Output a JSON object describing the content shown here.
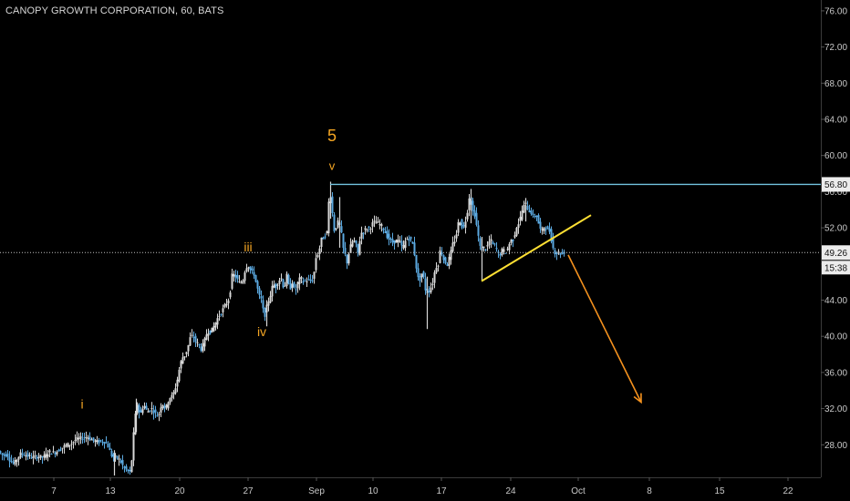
{
  "chart_data": {
    "type": "candlestick",
    "title": "CANOPY GROWTH CORPORATION, 60, BATS",
    "x_ticks": [
      "7",
      "13",
      "20",
      "27",
      "Sep",
      "10",
      "17",
      "24",
      "Oct",
      "8",
      "15",
      "22"
    ],
    "y_ticks": [
      "76.00",
      "72.00",
      "68.00",
      "64.00",
      "60.00",
      "56.00",
      "52.00",
      "48.00",
      "44.00",
      "40.00",
      "36.00",
      "32.00",
      "28.00"
    ],
    "ylim": [
      24.4,
      77.2
    ],
    "resistance_level": 56.8,
    "resistance_label": "56.80",
    "last_price": 49.26,
    "last_price_label": "49.26",
    "countdown_label": "15:38",
    "wave_labels": [
      {
        "text": "i",
        "price": 32.0
      },
      {
        "text": "iii",
        "price": 49.4
      },
      {
        "text": "iv",
        "price": 40.0
      },
      {
        "text": "5",
        "price": 61.6
      },
      {
        "text": "v",
        "price": 58.4
      }
    ],
    "price_path": [
      [
        0,
        27.2
      ],
      [
        4,
        26.8
      ],
      [
        8,
        27.0
      ],
      [
        12,
        26.2
      ],
      [
        16,
        25.9
      ],
      [
        20,
        26.6
      ],
      [
        24,
        27.1
      ],
      [
        30,
        26.8
      ],
      [
        36,
        26.6
      ],
      [
        42,
        26.7
      ],
      [
        48,
        26.6
      ],
      [
        54,
        27.2
      ],
      [
        60,
        27.1
      ],
      [
        66,
        27.5
      ],
      [
        72,
        27.9
      ],
      [
        78,
        28.1
      ],
      [
        84,
        28.6
      ],
      [
        90,
        28.7
      ],
      [
        96,
        28.9
      ],
      [
        102,
        28.5
      ],
      [
        108,
        28.3
      ],
      [
        114,
        28.4
      ],
      [
        118,
        28.1
      ],
      [
        121,
        27.3
      ],
      [
        124,
        26.6
      ],
      [
        128,
        26.6
      ],
      [
        132,
        26.3
      ],
      [
        136,
        25.5
      ],
      [
        140,
        25.1
      ],
      [
        144,
        24.9
      ],
      [
        148,
        30.6
      ],
      [
        151,
        32.6
      ],
      [
        154,
        31.2
      ],
      [
        158,
        32.5
      ],
      [
        162,
        31.6
      ],
      [
        166,
        32.1
      ],
      [
        170,
        31.6
      ],
      [
        174,
        31.1
      ],
      [
        178,
        32.7
      ],
      [
        182,
        31.9
      ],
      [
        186,
        33.2
      ],
      [
        190,
        33.4
      ],
      [
        194,
        34.7
      ],
      [
        197,
        36.3
      ],
      [
        200,
        37.6
      ],
      [
        203,
        37.9
      ],
      [
        206,
        38.6
      ],
      [
        209,
        39.8
      ],
      [
        212,
        40.1
      ],
      [
        215,
        39.4
      ],
      [
        218,
        39.1
      ],
      [
        221,
        38.6
      ],
      [
        224,
        39.2
      ],
      [
        228,
        40.6
      ],
      [
        232,
        40.5
      ],
      [
        236,
        41.3
      ],
      [
        240,
        42.2
      ],
      [
        244,
        42.8
      ],
      [
        248,
        43.5
      ],
      [
        252,
        44.3
      ],
      [
        255,
        46.7
      ],
      [
        258,
        46.8
      ],
      [
        261,
        46.2
      ],
      [
        264,
        45.8
      ],
      [
        267,
        46.3
      ],
      [
        270,
        47.7
      ],
      [
        273,
        47.8
      ],
      [
        276,
        47.1
      ],
      [
        279,
        46.9
      ],
      [
        282,
        45.6
      ],
      [
        285,
        44.4
      ],
      [
        288,
        43.9
      ],
      [
        290,
        41.9
      ],
      [
        292,
        42.9
      ],
      [
        294,
        43.6
      ],
      [
        297,
        44.6
      ],
      [
        300,
        45.8
      ],
      [
        303,
        45.5
      ],
      [
        306,
        46.2
      ],
      [
        309,
        46.4
      ],
      [
        312,
        45.2
      ],
      [
        315,
        46.7
      ],
      [
        318,
        45.1
      ],
      [
        321,
        46.0
      ],
      [
        324,
        44.8
      ],
      [
        327,
        45.9
      ],
      [
        330,
        46.5
      ],
      [
        333,
        46.0
      ],
      [
        336,
        46.2
      ],
      [
        340,
        46.1
      ],
      [
        344,
        46.3
      ],
      [
        347,
        48.7
      ],
      [
        350,
        49.3
      ],
      [
        353,
        50.7
      ],
      [
        356,
        51.0
      ],
      [
        359,
        51.5
      ],
      [
        362,
        56.5
      ],
      [
        364,
        54.7
      ],
      [
        366,
        52.5
      ],
      [
        368,
        51.0
      ],
      [
        370,
        53.3
      ],
      [
        372,
        51.9
      ],
      [
        374,
        52.5
      ],
      [
        376,
        50.0
      ],
      [
        378,
        49.4
      ],
      [
        381,
        48.2
      ],
      [
        384,
        49.7
      ],
      [
        387,
        50.5
      ],
      [
        390,
        50.5
      ],
      [
        393,
        49.2
      ],
      [
        396,
        51.4
      ],
      [
        399,
        51.6
      ],
      [
        402,
        51.9
      ],
      [
        406,
        52.0
      ],
      [
        410,
        52.6
      ],
      [
        414,
        52.6
      ],
      [
        418,
        52.3
      ],
      [
        422,
        51.7
      ],
      [
        426,
        50.9
      ],
      [
        430,
        50.4
      ],
      [
        434,
        50.5
      ],
      [
        438,
        50.6
      ],
      [
        442,
        49.7
      ],
      [
        446,
        50.8
      ],
      [
        450,
        50.8
      ],
      [
        454,
        50.0
      ],
      [
        456,
        48.2
      ],
      [
        458,
        47.1
      ],
      [
        460,
        45.7
      ],
      [
        462,
        46.9
      ],
      [
        464,
        47.0
      ],
      [
        466,
        45.8
      ],
      [
        468,
        44.6
      ],
      [
        470,
        45.2
      ],
      [
        472,
        44.9
      ],
      [
        474,
        46.0
      ],
      [
        476,
        45.9
      ],
      [
        478,
        48.2
      ],
      [
        480,
        47.3
      ],
      [
        482,
        48.8
      ],
      [
        484,
        50.0
      ],
      [
        486,
        48.4
      ],
      [
        488,
        48.6
      ],
      [
        490,
        47.7
      ],
      [
        492,
        48.2
      ],
      [
        494,
        49.0
      ],
      [
        496,
        49.6
      ],
      [
        498,
        50.8
      ],
      [
        500,
        50.4
      ],
      [
        502,
        52.3
      ],
      [
        504,
        52.7
      ],
      [
        506,
        52.8
      ],
      [
        508,
        51.5
      ],
      [
        510,
        52.9
      ],
      [
        512,
        52.8
      ],
      [
        514,
        55.0
      ],
      [
        516,
        55.8
      ],
      [
        518,
        53.7
      ],
      [
        520,
        53.9
      ],
      [
        522,
        53.1
      ],
      [
        524,
        51.5
      ],
      [
        526,
        50.6
      ],
      [
        528,
        49.1
      ],
      [
        530,
        50.2
      ],
      [
        532,
        49.4
      ],
      [
        534,
        50.0
      ],
      [
        536,
        50.0
      ],
      [
        538,
        50.9
      ],
      [
        540,
        50.2
      ],
      [
        542,
        50.1
      ],
      [
        544,
        49.9
      ],
      [
        546,
        49.3
      ],
      [
        548,
        48.8
      ],
      [
        550,
        49.4
      ],
      [
        552,
        49.6
      ],
      [
        554,
        49.3
      ],
      [
        556,
        49.4
      ],
      [
        558,
        49.9
      ],
      [
        560,
        50.6
      ],
      [
        562,
        50.6
      ],
      [
        564,
        50.8
      ],
      [
        566,
        51.9
      ],
      [
        568,
        52.4
      ],
      [
        570,
        52.6
      ],
      [
        572,
        53.6
      ],
      [
        574,
        54.2
      ],
      [
        576,
        54.6
      ],
      [
        578,
        54.6
      ],
      [
        580,
        53.7
      ],
      [
        582,
        54.0
      ],
      [
        584,
        53.4
      ],
      [
        586,
        53.0
      ],
      [
        588,
        53.7
      ],
      [
        590,
        52.9
      ],
      [
        592,
        52.1
      ],
      [
        594,
        51.5
      ],
      [
        596,
        51.8
      ],
      [
        598,
        52.4
      ],
      [
        600,
        51.6
      ],
      [
        602,
        51.8
      ],
      [
        604,
        51.5
      ],
      [
        606,
        50.0
      ],
      [
        608,
        49.5
      ],
      [
        610,
        49.1
      ],
      [
        612,
        49.3
      ],
      [
        614,
        49.2
      ],
      [
        616,
        49.1
      ],
      [
        618,
        49.3
      ]
    ],
    "spikes": [
      {
        "x": 125,
        "lo": 24.6,
        "hi": 27.4
      },
      {
        "x": 149,
        "lo": 29.4,
        "hi": 33.1
      },
      {
        "x": 292,
        "lo": 41.1,
        "hi": 44.0
      },
      {
        "x": 362,
        "lo": 53.0,
        "hi": 57.1
      },
      {
        "x": 372,
        "lo": 49.8,
        "hi": 55.4
      },
      {
        "x": 468,
        "lo": 40.8,
        "hi": 46.6
      },
      {
        "x": 516,
        "lo": 52.5,
        "hi": 56.3
      },
      {
        "x": 528,
        "lo": 46.2,
        "hi": 51.0
      },
      {
        "x": 576,
        "lo": 52.7,
        "hi": 55.3
      }
    ],
    "trendline": {
      "x0": 528,
      "p0": 46.1,
      "x1": 648,
      "p1": 53.4
    },
    "projection_arrow": {
      "x0": 623,
      "p0": 49.0,
      "x1": 703,
      "p1": 32.7
    }
  },
  "colors": {
    "background": "#000000",
    "axis_text": "#c8c8c8",
    "candle": "#5ba9e0",
    "candle_alt": "#d8d8d8",
    "resistance": "#72c3df",
    "trendline": "#ffe033",
    "projection": "#f5921e",
    "wave_label": "#f5a623",
    "price_tag_bg": "#ececec"
  }
}
